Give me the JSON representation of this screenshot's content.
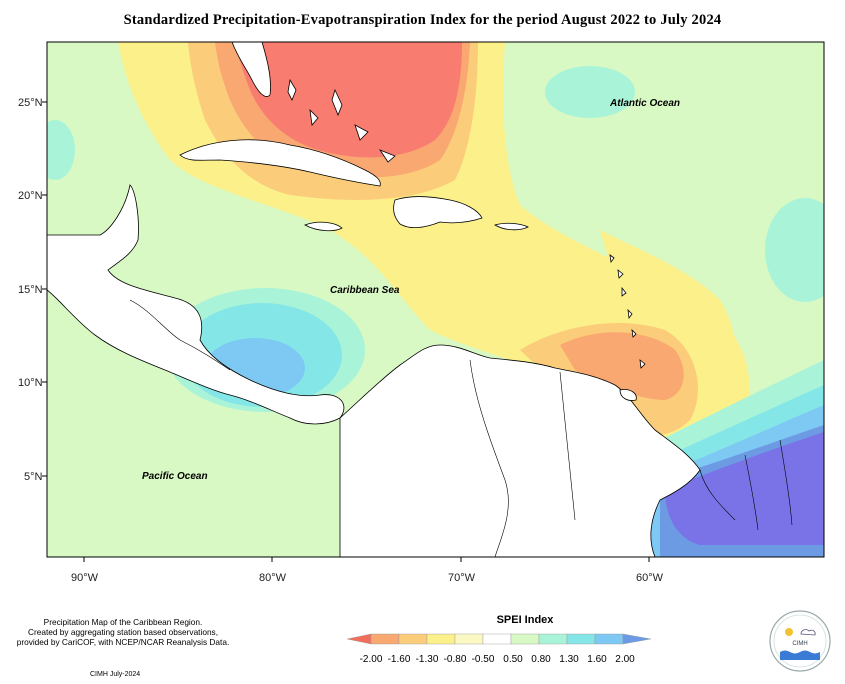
{
  "title": "Standardized Precipitation-Evapotranspiration Index for the period August 2022 to July 2024",
  "map": {
    "lat_ticks": [
      "25°N",
      "20°N",
      "15°N",
      "10°N",
      "5°N"
    ],
    "lon_ticks": [
      "90°W",
      "80°W",
      "70°W",
      "60°W"
    ],
    "ocean_labels": {
      "atlantic": "Atlantic Ocean",
      "caribbean": "Caribbean Sea",
      "pacific": "Pacific Ocean"
    },
    "extent": {
      "lon": [
        -92.5,
        -51.5
      ],
      "lat": [
        1,
        28.5
      ]
    }
  },
  "legend": {
    "title": "SPEI Index",
    "ticks": [
      "-2.00",
      "-1.60",
      "-1.30",
      "-0.80",
      "-0.50",
      "0.50",
      "0.80",
      "1.30",
      "1.60",
      "2.00"
    ],
    "colors": [
      "#f26d5b",
      "#f8a870",
      "#fbcd7a",
      "#fbf08a",
      "#fbf8c4",
      "#d8f8c4",
      "#a9f4d8",
      "#84e6e6",
      "#7ec8f4",
      "#6c9be4"
    ]
  },
  "credit": {
    "line1": "Precipitation Map of the Caribbean Region.",
    "line2": "Created by aggregating station based observations,",
    "line3": "provided by CariCOF, with NCEP/NCAR Reanalysis Data."
  },
  "footer": "CIMH July-2024",
  "logo": {
    "label": "CIMH"
  }
}
